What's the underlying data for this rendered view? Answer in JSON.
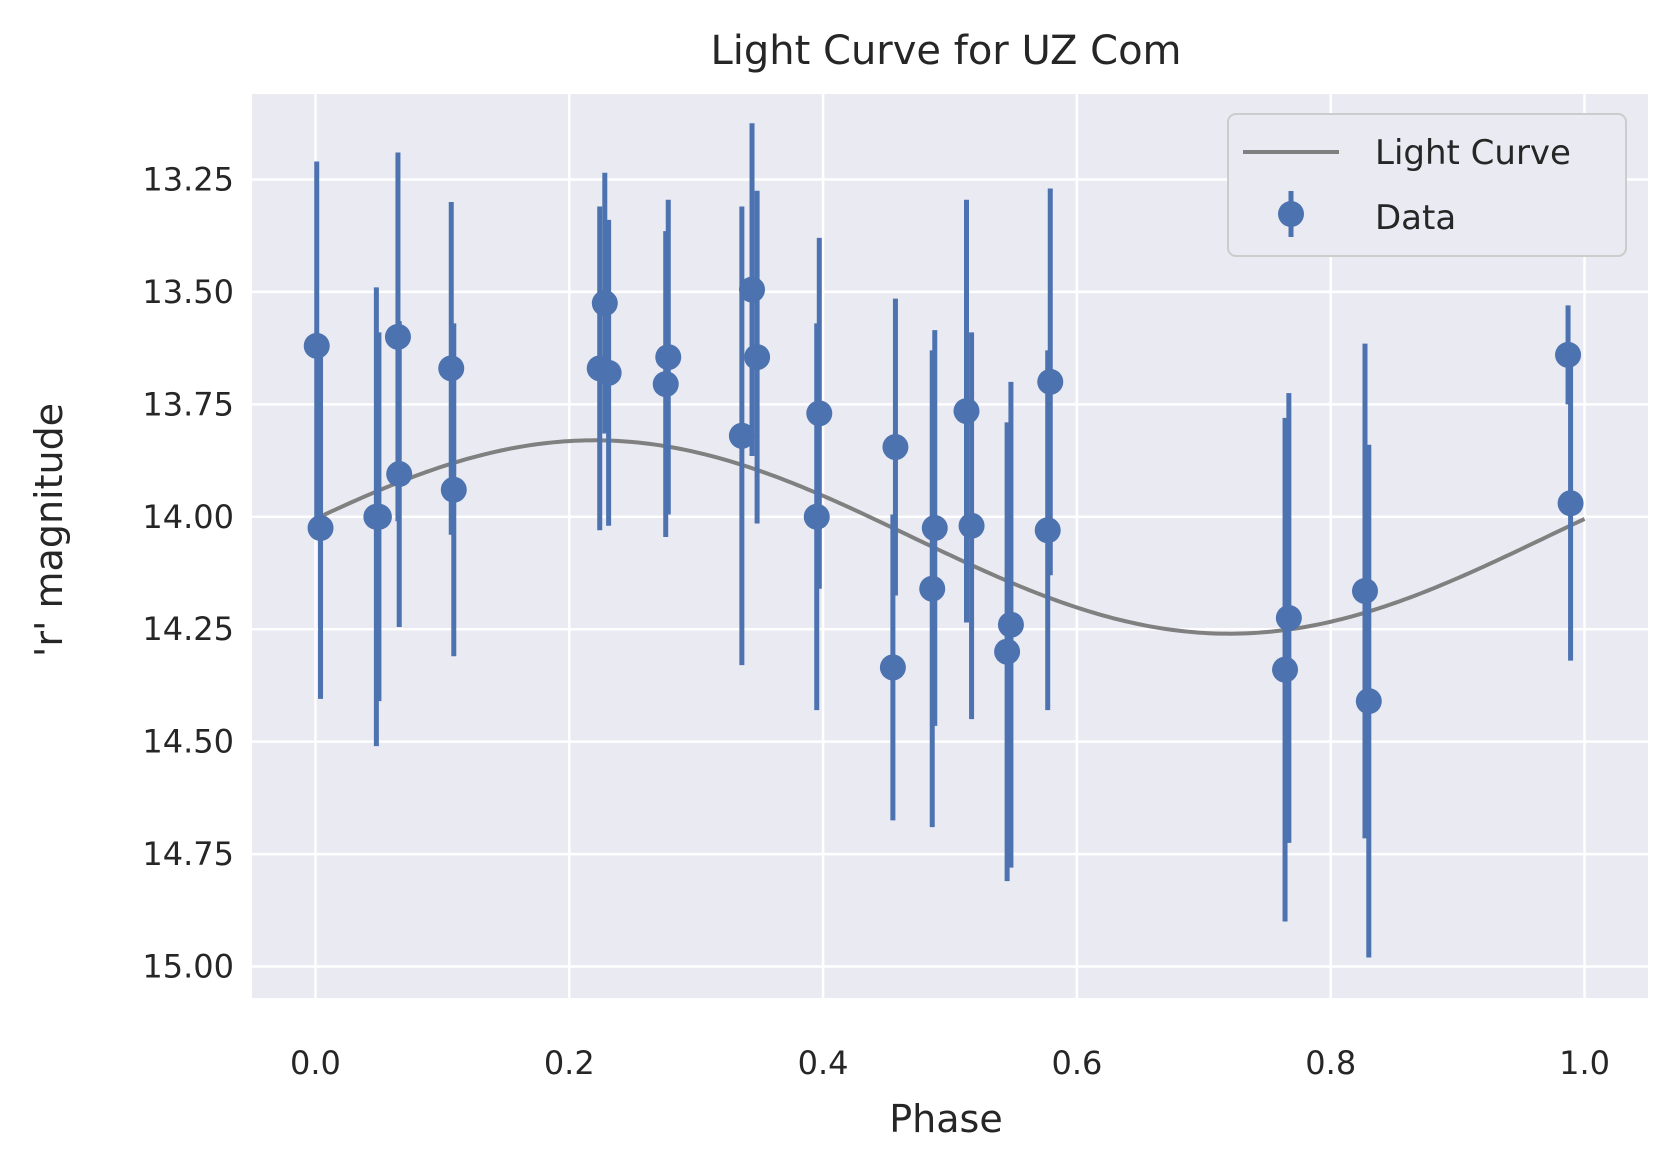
{
  "chart_data": {
    "type": "scatter",
    "title": "Light Curve for UZ Com",
    "xlabel": "Phase",
    "ylabel": "'r' magnitude",
    "xlim": [
      -0.05,
      1.05
    ],
    "ylim": [
      15.07,
      13.06
    ],
    "y_inverted": true,
    "xticks": [
      0.0,
      0.2,
      0.4,
      0.6,
      0.8,
      1.0
    ],
    "xtick_labels": [
      "0.0",
      "0.2",
      "0.4",
      "0.6",
      "0.8",
      "1.0"
    ],
    "yticks": [
      13.25,
      13.5,
      13.75,
      14.0,
      14.25,
      14.5,
      14.75,
      15.0
    ],
    "ytick_labels": [
      "13.25",
      "13.50",
      "13.75",
      "14.00",
      "14.25",
      "14.50",
      "14.75",
      "15.00"
    ],
    "grid": true,
    "legend_position": "top-right",
    "colors": {
      "plot_background": "#eaeaf2",
      "grid": "#ffffff",
      "data": "#4c72b0",
      "curve": "#808080"
    },
    "series": [
      {
        "name": "Light Curve",
        "kind": "line",
        "color": "#808080",
        "model": {
          "mean": 14.045,
          "amplitude": 0.215,
          "phase_of_max_brightness": 0.22
        }
      },
      {
        "name": "Data",
        "kind": "errorbar",
        "color": "#4c72b0",
        "points": [
          {
            "x": 0.001,
            "y": 13.62,
            "err": 0.41
          },
          {
            "x": 0.004,
            "y": 14.025,
            "err": 0.38
          },
          {
            "x": 0.048,
            "y": 14.0,
            "err": 0.51
          },
          {
            "x": 0.05,
            "y": 14.0,
            "err": 0.41
          },
          {
            "x": 0.065,
            "y": 13.6,
            "err": 0.41
          },
          {
            "x": 0.066,
            "y": 13.905,
            "err": 0.34
          },
          {
            "x": 0.107,
            "y": 13.67,
            "err": 0.37
          },
          {
            "x": 0.109,
            "y": 13.94,
            "err": 0.37
          },
          {
            "x": 0.224,
            "y": 13.67,
            "err": 0.36
          },
          {
            "x": 0.228,
            "y": 13.525,
            "err": 0.29
          },
          {
            "x": 0.231,
            "y": 13.68,
            "err": 0.34
          },
          {
            "x": 0.276,
            "y": 13.705,
            "err": 0.34
          },
          {
            "x": 0.278,
            "y": 13.645,
            "err": 0.35
          },
          {
            "x": 0.336,
            "y": 13.82,
            "err": 0.51
          },
          {
            "x": 0.344,
            "y": 13.495,
            "err": 0.37
          },
          {
            "x": 0.348,
            "y": 13.645,
            "err": 0.37
          },
          {
            "x": 0.395,
            "y": 14.0,
            "err": 0.43
          },
          {
            "x": 0.397,
            "y": 13.77,
            "err": 0.39
          },
          {
            "x": 0.455,
            "y": 14.335,
            "err": 0.34
          },
          {
            "x": 0.457,
            "y": 13.845,
            "err": 0.33
          },
          {
            "x": 0.486,
            "y": 14.16,
            "err": 0.53
          },
          {
            "x": 0.488,
            "y": 14.025,
            "err": 0.44
          },
          {
            "x": 0.513,
            "y": 13.765,
            "err": 0.47
          },
          {
            "x": 0.517,
            "y": 14.02,
            "err": 0.43
          },
          {
            "x": 0.545,
            "y": 14.3,
            "err": 0.51
          },
          {
            "x": 0.548,
            "y": 14.24,
            "err": 0.54
          },
          {
            "x": 0.577,
            "y": 14.03,
            "err": 0.4
          },
          {
            "x": 0.579,
            "y": 13.7,
            "err": 0.43
          },
          {
            "x": 0.764,
            "y": 14.34,
            "err": 0.56
          },
          {
            "x": 0.767,
            "y": 14.225,
            "err": 0.5
          },
          {
            "x": 0.827,
            "y": 14.165,
            "err": 0.55
          },
          {
            "x": 0.83,
            "y": 14.41,
            "err": 0.57
          },
          {
            "x": 0.987,
            "y": 13.64,
            "err": 0.11
          },
          {
            "x": 0.989,
            "y": 13.97,
            "err": 0.35
          }
        ]
      }
    ]
  }
}
